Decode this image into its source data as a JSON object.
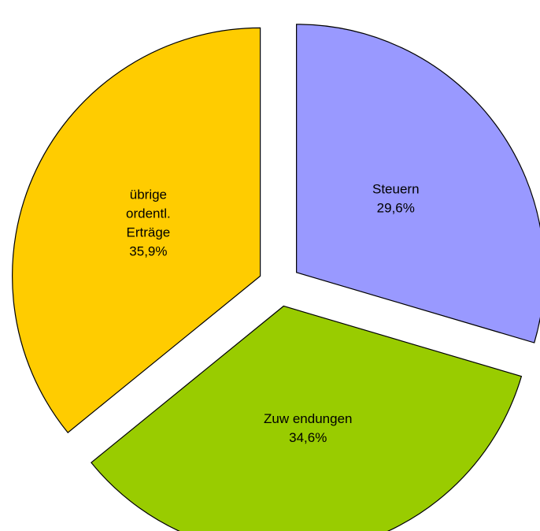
{
  "chart_data": {
    "type": "pie",
    "title": "",
    "exploded": true,
    "slices": [
      {
        "label_lines": [
          "Steuern"
        ],
        "value_label": "29,6%",
        "value": 29.6,
        "color": "#9999FF"
      },
      {
        "label_lines": [
          "Zuw endungen"
        ],
        "value_label": "34,6%",
        "value": 34.6,
        "color": "#99CC00"
      },
      {
        "label_lines": [
          "übrige",
          "ordentl.",
          "Erträge"
        ],
        "value_label": "35,9%",
        "value": 35.9,
        "color": "#FFCC00"
      }
    ]
  }
}
